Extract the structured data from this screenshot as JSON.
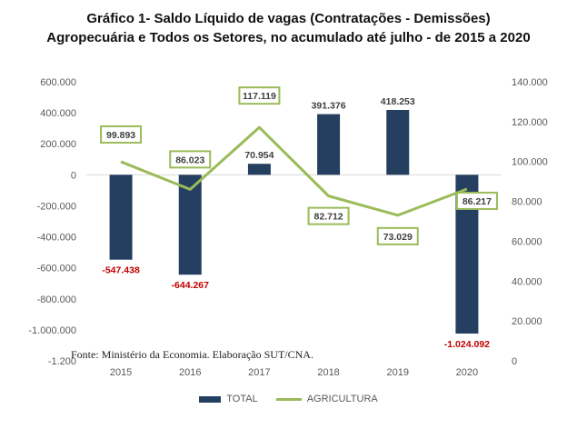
{
  "title_line1": "Gráfico 1- Saldo Líquido de vagas (Contratações - Demissões)",
  "title_line2": "Agropecuária e Todos os Setores, no acumulado até julho - de 2015 a 2020",
  "source": "Fonte: Ministério da Economia. Elaboração SUT/CNA.",
  "chart_data": {
    "type": "bar",
    "categories": [
      "2015",
      "2016",
      "2017",
      "2018",
      "2019",
      "2020"
    ],
    "series": [
      {
        "name": "TOTAL",
        "type": "bar",
        "axis": "left",
        "values": [
          -547438,
          -644267,
          70954,
          391376,
          418253,
          -1024092
        ],
        "labels": [
          "-547.438",
          "-644.267",
          "70.954",
          "391.376",
          "418.253",
          "-1.024.092"
        ],
        "color": "#243f60"
      },
      {
        "name": "AGRICULTURA",
        "type": "line",
        "axis": "right",
        "values": [
          99893,
          86023,
          117119,
          82712,
          73029,
          86217
        ],
        "labels": [
          "99.893",
          "86.023",
          "117.119",
          "82.712",
          "73.029",
          "86.217"
        ],
        "color": "#9bbb59"
      }
    ],
    "y_left": {
      "min": -1200000,
      "max": 600000,
      "ticks": [
        "600.000",
        "400.000",
        "200.000",
        "0",
        "-200.000",
        "-400.000",
        "-600.000",
        "-800.000",
        "-1.000.000",
        "-1.200"
      ]
    },
    "y_right": {
      "min": 0,
      "max": 140000,
      "ticks": [
        "140.000",
        "120.000",
        "100.000",
        "80.000",
        "60.000",
        "40.000",
        "20.000",
        "0"
      ]
    },
    "legend": [
      "TOTAL",
      "AGRICULTURA"
    ],
    "legend_position": "bottom",
    "negative_label_color": "#c00000",
    "grid": false
  }
}
